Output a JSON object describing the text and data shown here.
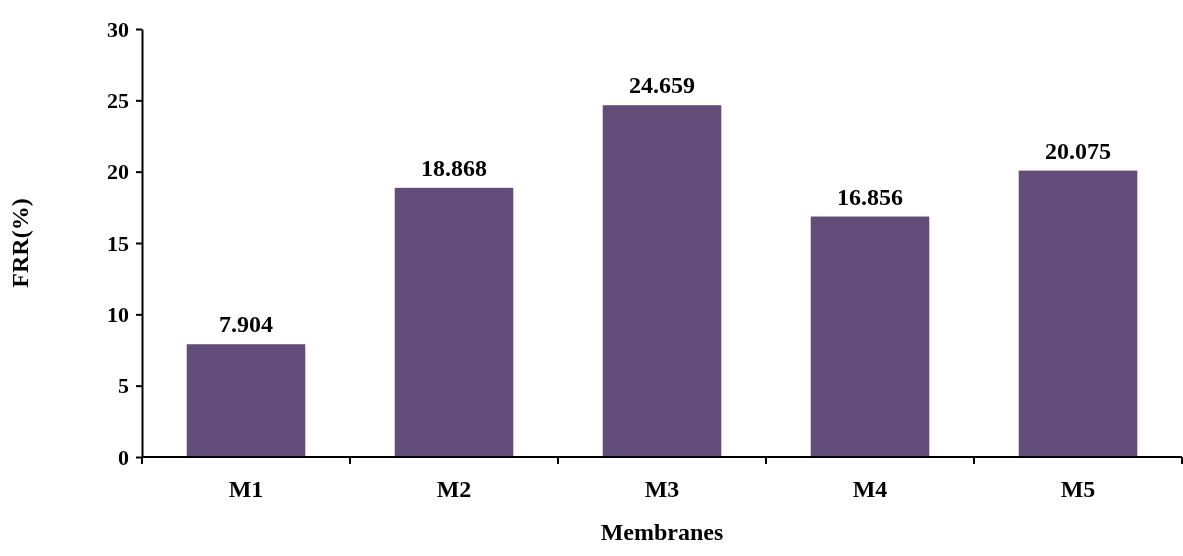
{
  "chart_data": {
    "type": "bar",
    "xlabel": "Membranes",
    "ylabel": "FRR(%)",
    "categories": [
      "M1",
      "M2",
      "M3",
      "M4",
      "M5"
    ],
    "values": [
      7.904,
      18.868,
      24.659,
      16.856,
      20.075
    ],
    "color": "#614c7a",
    "ylim": [
      0,
      30
    ],
    "yticks": [
      0,
      5,
      10,
      15,
      20,
      25,
      30
    ],
    "grid": false,
    "data_labels": true
  }
}
